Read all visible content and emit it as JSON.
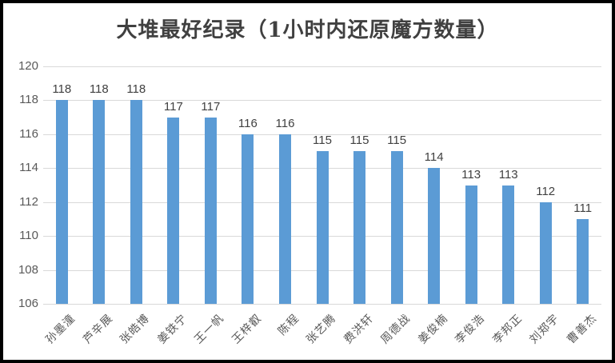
{
  "window": {
    "background": "#ffffff",
    "border_color": "#000000"
  },
  "chart_data": {
    "type": "bar",
    "title": "大堆最好纪录（1小时内还原魔方数量）",
    "categories": [
      "孙墨潼",
      "芦辛展",
      "张皓博",
      "姜铁宁",
      "王一帆",
      "王梓叡",
      "陈程",
      "张艺腾",
      "费洪轩",
      "周德战",
      "姜俊楠",
      "李俊浩",
      "李邦正",
      "刘郑宇",
      "曹善杰"
    ],
    "values": [
      118,
      118,
      118,
      117,
      117,
      116,
      116,
      115,
      115,
      115,
      114,
      113,
      113,
      112,
      111
    ],
    "xlabel": "",
    "ylabel": "",
    "ylim": [
      106,
      120
    ],
    "yticks": [
      106,
      108,
      110,
      112,
      114,
      116,
      118,
      120
    ],
    "grid": true,
    "legend_position": "none",
    "data_labels": true,
    "category_label_rotation_deg": 45,
    "colors": {
      "bar": "#5B9BD5",
      "title": "#404040",
      "value_label": "#404040",
      "tick_label": "#595959",
      "gridline": "#D9D9D9"
    }
  }
}
